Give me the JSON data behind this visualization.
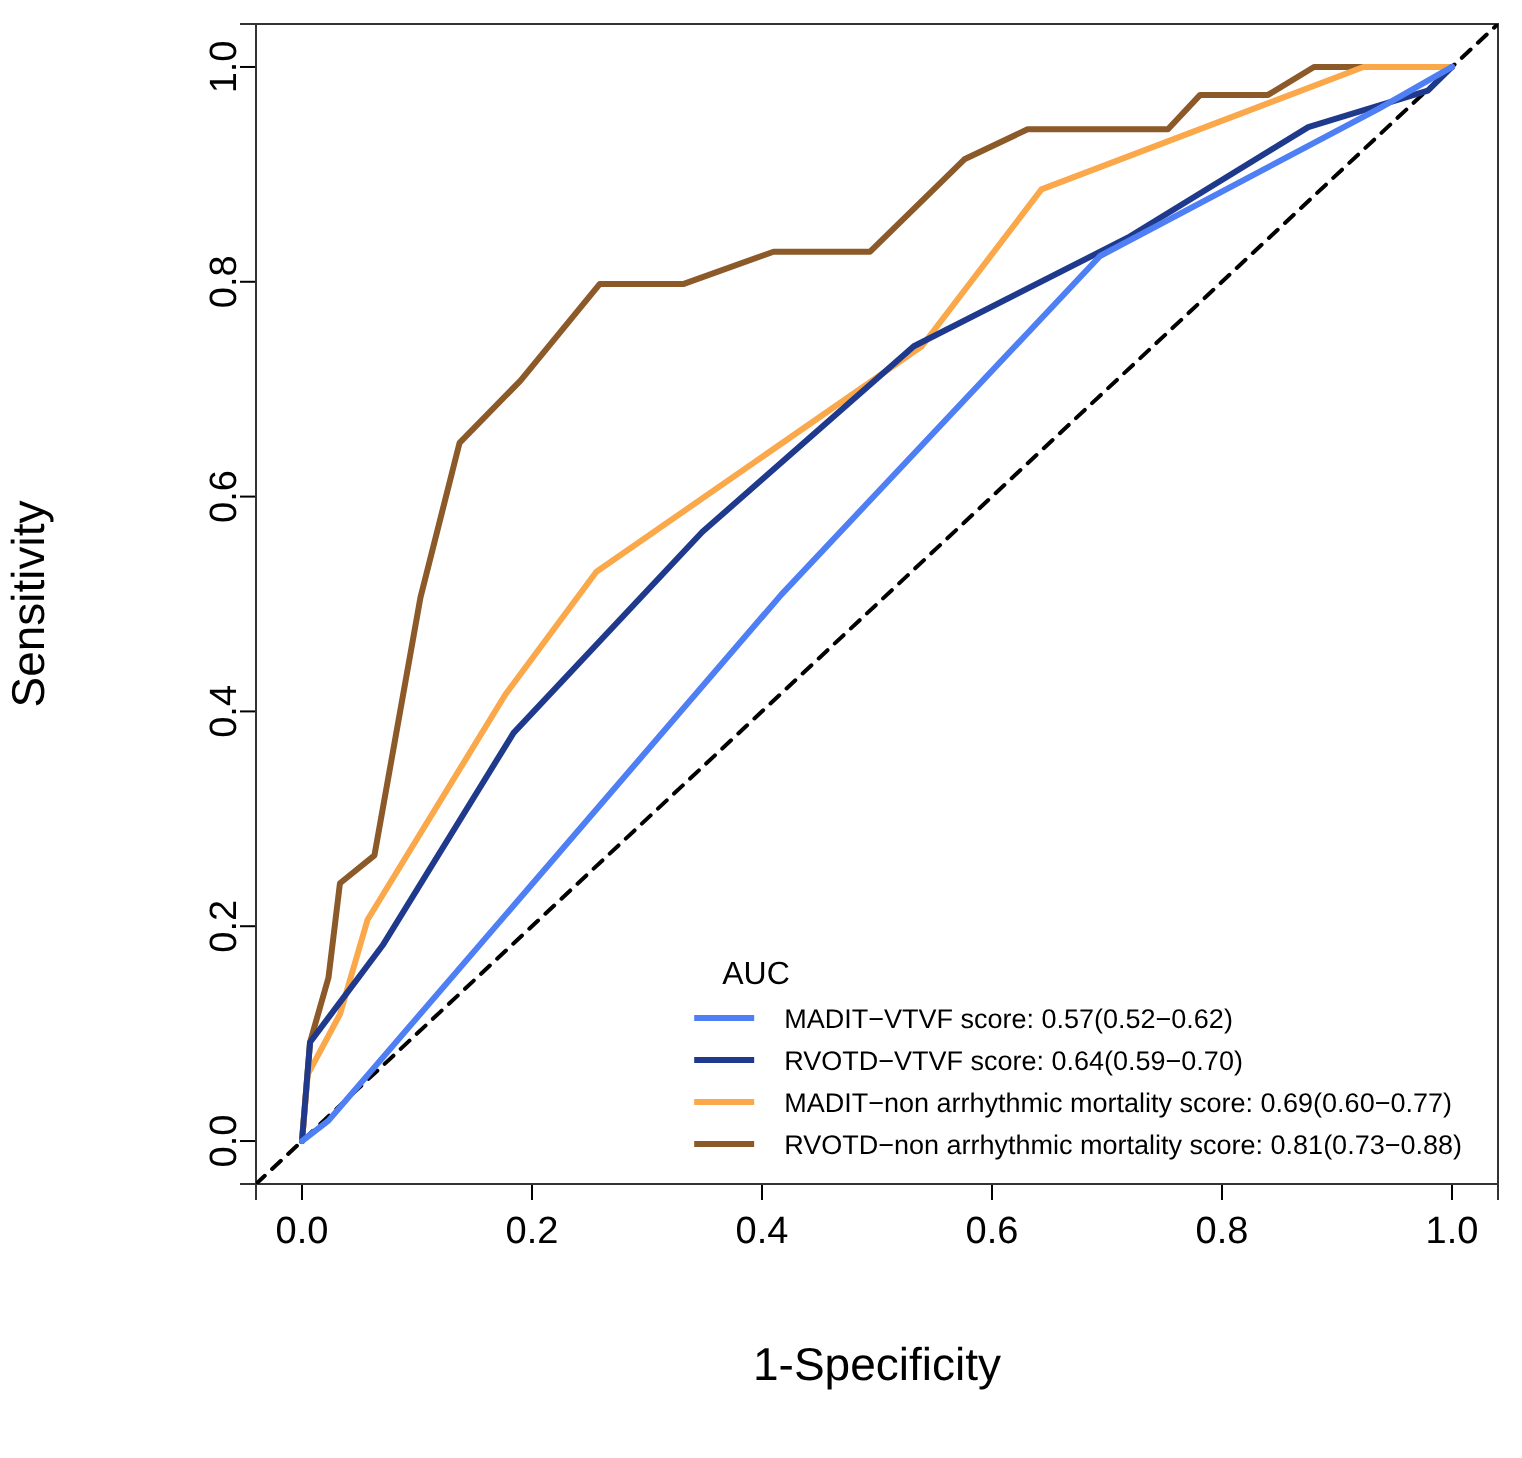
{
  "chart_data": {
    "type": "line",
    "xlabel": "1-Specificity",
    "ylabel": "Sensitivity",
    "xlim": [
      -0.04,
      1.04
    ],
    "ylim": [
      -0.04,
      1.04
    ],
    "xticks": [
      {
        "value": 0,
        "label": "0.0"
      },
      {
        "value": 0.2,
        "label": "0.2"
      },
      {
        "value": 0.4,
        "label": "0.4"
      },
      {
        "value": 0.6,
        "label": "0.6"
      },
      {
        "value": 0.8,
        "label": "0.8"
      },
      {
        "value": 1,
        "label": "1.0"
      }
    ],
    "yticks": [
      {
        "value": 0,
        "label": "0.0"
      },
      {
        "value": 0.2,
        "label": "0.2"
      },
      {
        "value": 0.4,
        "label": "0.4"
      },
      {
        "value": 0.6,
        "label": "0.6"
      },
      {
        "value": 0.8,
        "label": "0.8"
      },
      {
        "value": 1,
        "label": "1.0"
      }
    ],
    "grid": false,
    "legend": "bottom right",
    "legend_title": "AUC",
    "marker": "none",
    "series": [
      {
        "name": "MADIT−VTVF score: 0.57(0.52−0.62)",
        "color": "#4f7ff5",
        "x": [
          0,
          0.023,
          0.417,
          0.694,
          0.936,
          1
        ],
        "values": [
          0,
          0.019,
          0.509,
          0.824,
          0.961,
          1
        ]
      },
      {
        "name": "RVOTD−VTVF score: 0.64(0.59−0.70)",
        "color": "#1f3a8c",
        "x": [
          0,
          0.007,
          0.07,
          0.184,
          0.348,
          0.532,
          0.718,
          0.875,
          0.979,
          1
        ],
        "values": [
          0,
          0.092,
          0.182,
          0.38,
          0.567,
          0.74,
          0.841,
          0.944,
          0.978,
          1
        ]
      },
      {
        "name": "MADIT−non arrhythmic mortality score: 0.69(0.60−0.77)",
        "color": "#fba84a",
        "x": [
          0,
          0.005,
          0.033,
          0.057,
          0.177,
          0.256,
          0.539,
          0.643,
          0.923,
          1
        ],
        "values": [
          0,
          0.062,
          0.118,
          0.206,
          0.416,
          0.53,
          0.74,
          0.886,
          1,
          1
        ]
      },
      {
        "name": "RVOTD−non arrhythmic mortality score: 0.81(0.73−0.88)",
        "color": "#8c5a28",
        "x": [
          0,
          0.007,
          0.023,
          0.033,
          0.063,
          0.103,
          0.137,
          0.19,
          0.259,
          0.332,
          0.41,
          0.494,
          0.576,
          0.631,
          0.753,
          0.781,
          0.84,
          0.88,
          1
        ],
        "values": [
          0,
          0.092,
          0.152,
          0.24,
          0.266,
          0.506,
          0.65,
          0.708,
          0.798,
          0.798,
          0.828,
          0.828,
          0.914,
          0.942,
          0.942,
          0.974,
          0.974,
          1,
          1
        ]
      },
      {
        "color": "#000000",
        "line_style": "dashed",
        "x": [
          -0.04,
          1.04
        ],
        "values": [
          -0.04,
          1.04
        ]
      }
    ]
  }
}
